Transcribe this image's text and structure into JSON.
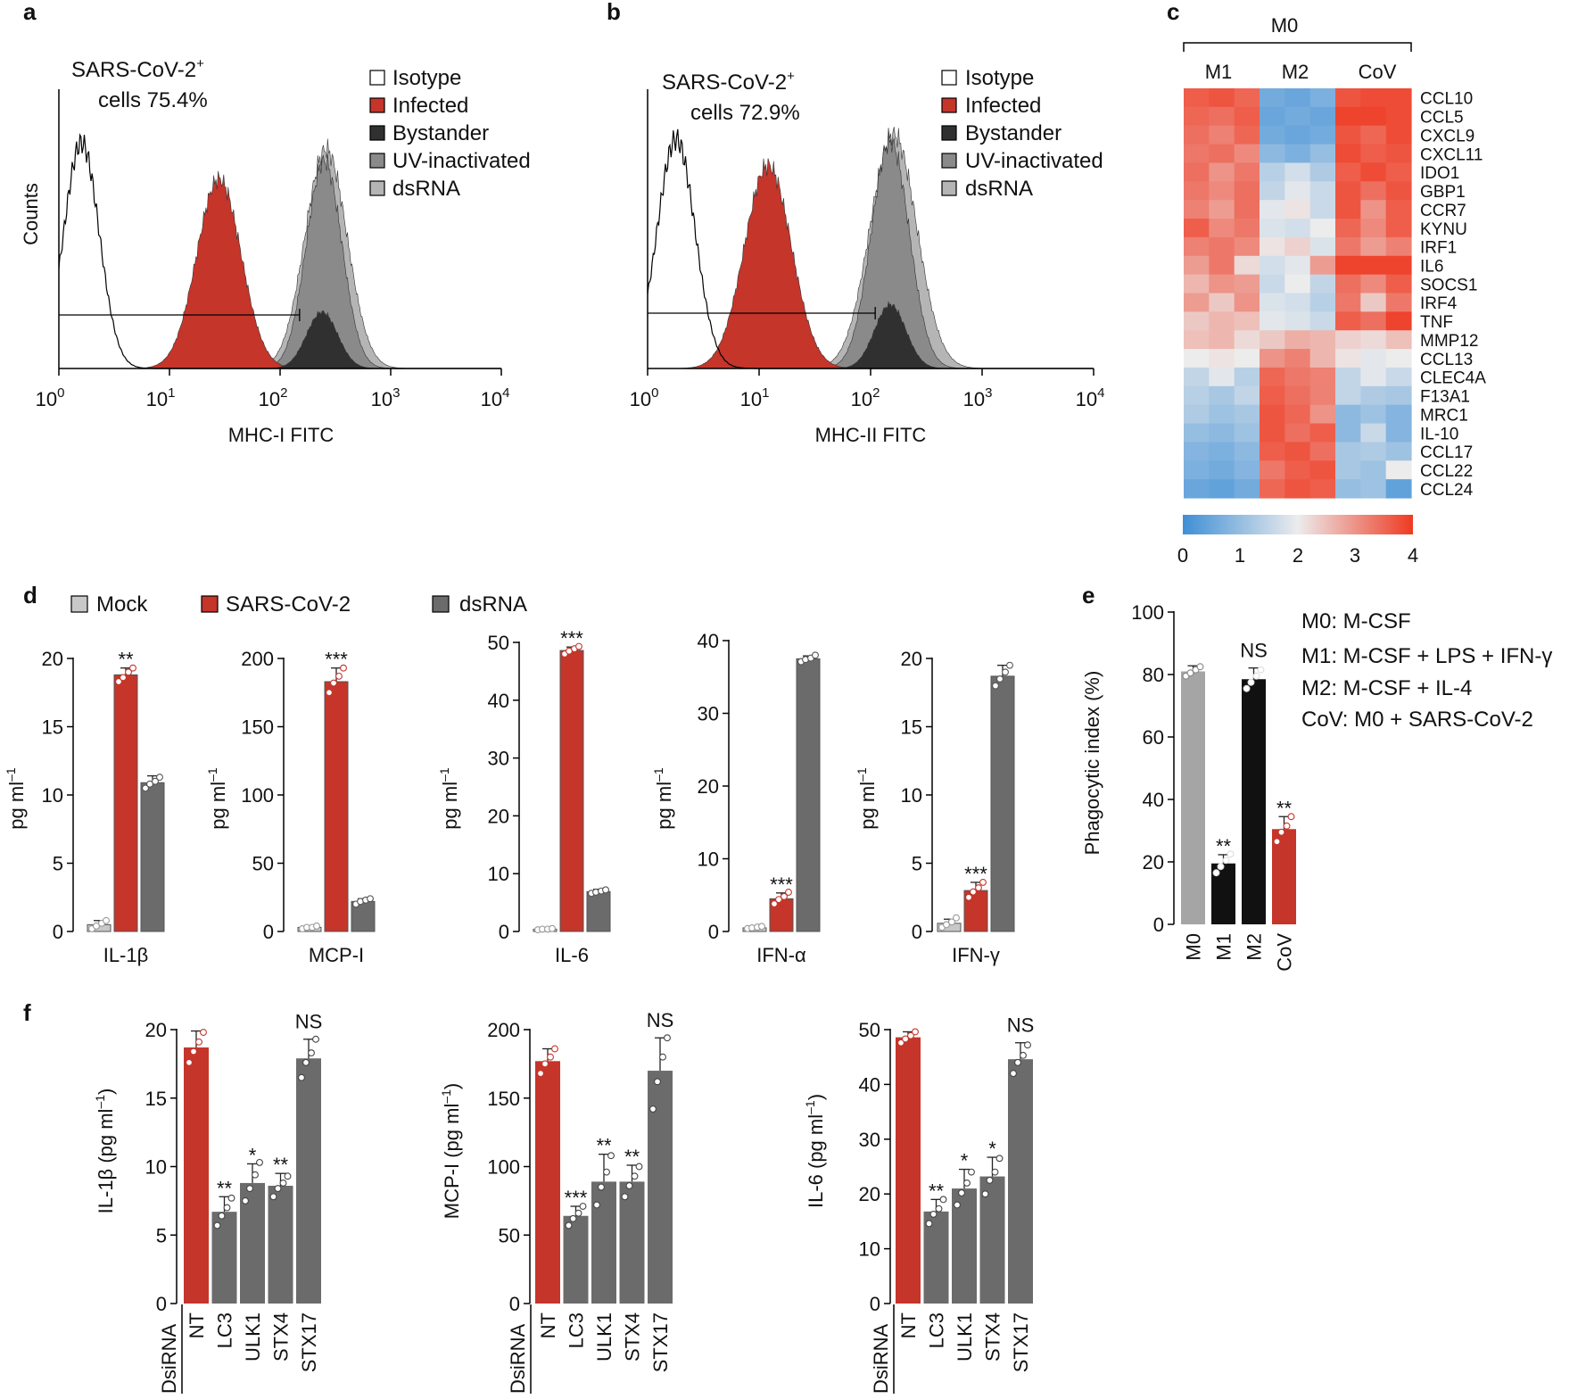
{
  "colors": {
    "red": "#c5352a",
    "dark": "#303030",
    "gray": "#6b6b6b",
    "mock": "#c8c8c8",
    "lightgray": "#a5a5a5",
    "black": "#111111",
    "heat_low": "#3f8fd6",
    "heat_mid": "#ececec",
    "heat_high": "#ee3a22"
  },
  "panels": {
    "a": {
      "label": "a",
      "annotation": [
        "SARS-CoV-2",
        "+",
        "cells 75.4%"
      ],
      "xlabel": "MHC-I FITC",
      "ylabel": "Counts",
      "legend": [
        {
          "label": "Isotype",
          "color": "#ffffff"
        },
        {
          "label": "Infected",
          "color": "#c5352a"
        },
        {
          "label": "Bystander",
          "color": "#303030"
        },
        {
          "label": "UV-inactivated",
          "color": "#8a8a8a"
        },
        {
          "label": "dsRNA",
          "color": "#b5b5b5"
        }
      ],
      "xticks": [
        {
          "base": "10",
          "exp": "0"
        },
        {
          "base": "10",
          "exp": "1"
        },
        {
          "base": "10",
          "exp": "2"
        },
        {
          "base": "10",
          "exp": "3"
        },
        {
          "base": "10",
          "exp": "4"
        }
      ]
    },
    "b": {
      "label": "b",
      "annotation": [
        "SARS-CoV-2",
        "+",
        "cells 72.9%"
      ],
      "xlabel": "MHC-II FITC",
      "legend": [
        {
          "label": "Isotype",
          "color": "#ffffff"
        },
        {
          "label": "Infected",
          "color": "#c5352a"
        },
        {
          "label": "Bystander",
          "color": "#303030"
        },
        {
          "label": "UV-inactivated",
          "color": "#8a8a8a"
        },
        {
          "label": "dsRNA",
          "color": "#b5b5b5"
        }
      ],
      "xticks": [
        {
          "base": "10",
          "exp": "0"
        },
        {
          "base": "10",
          "exp": "1"
        },
        {
          "base": "10",
          "exp": "2"
        },
        {
          "base": "10",
          "exp": "3"
        },
        {
          "base": "10",
          "exp": "4"
        }
      ]
    },
    "c": {
      "label": "c",
      "top_group": "M0",
      "groups": [
        "M1",
        "M2",
        "CoV"
      ],
      "genes": [
        "CCL10",
        "CCL5",
        "CXCL9",
        "CXCL11",
        "IDO1",
        "GBP1",
        "CCR7",
        "KYNU",
        "IRF1",
        "IL6",
        "SOCS1",
        "IRF4",
        "TNF",
        "MMP12",
        "CCL13",
        "CLEC4A",
        "F13A1",
        "MRC1",
        "IL-10",
        "CCL17",
        "CCL22",
        "CCL24"
      ],
      "scale_ticks": [
        "0",
        "1",
        "2",
        "3",
        "4"
      ]
    },
    "d": {
      "label": "d",
      "legend": [
        {
          "label": "Mock",
          "color": "#c8c8c8"
        },
        {
          "label": "SARS-CoV-2",
          "color": "#c5352a"
        },
        {
          "label": "dsRNA",
          "color": "#6b6b6b"
        }
      ],
      "ylabel_text": "pg ml",
      "ylabel_sup": "–1"
    },
    "e": {
      "label": "e",
      "ylabel": "Phagocytic index (%)",
      "notes": [
        "M0: M-CSF",
        "M1: M-CSF + LPS + IFN-γ",
        "M2: M-CSF + IL-4",
        "CoV: M0 + SARS-CoV-2"
      ]
    },
    "f": {
      "label": "f",
      "row_label": "DsiRNA",
      "categories": [
        "NT",
        "LC3",
        "ULK1",
        "STX4",
        "STX17"
      ]
    }
  },
  "chart_data": [
    {
      "panel": "a",
      "type": "histogram",
      "xlabel": "MHC-I FITC",
      "ylabel": "Counts",
      "xscale": "log",
      "xlim": [
        1,
        10000
      ],
      "gate_range": [
        1,
        150
      ],
      "gate_percent": 75.4,
      "series": [
        {
          "name": "Isotype",
          "peak": 1.6,
          "width": 0.16,
          "height": 1.0,
          "mode": "outline"
        },
        {
          "name": "Infected",
          "peak": 28,
          "width": 0.2,
          "height": 0.84,
          "mode": "fill",
          "color": "#c5352a"
        },
        {
          "name": "UV-inactivated",
          "peak": 250,
          "width": 0.16,
          "height": 0.92,
          "mode": "fill",
          "color": "#8a8a8a"
        },
        {
          "name": "dsRNA",
          "peak": 260,
          "width": 0.19,
          "height": 0.97,
          "mode": "fill",
          "color": "#b5b5b5"
        },
        {
          "name": "Bystander",
          "peak": 240,
          "width": 0.14,
          "height": 0.25,
          "mode": "fill",
          "color": "#303030"
        }
      ]
    },
    {
      "panel": "b",
      "type": "histogram",
      "xlabel": "MHC-II FITC",
      "xscale": "log",
      "xlim": [
        1,
        10000
      ],
      "gate_range": [
        1,
        110
      ],
      "gate_percent": 72.9,
      "series": [
        {
          "name": "Isotype",
          "peak": 1.8,
          "width": 0.17,
          "height": 0.97,
          "mode": "outline"
        },
        {
          "name": "Infected",
          "peak": 12,
          "width": 0.21,
          "height": 0.86,
          "mode": "fill",
          "color": "#c5352a"
        },
        {
          "name": "UV-inactivated",
          "peak": 150,
          "width": 0.17,
          "height": 0.96,
          "mode": "fill",
          "color": "#8a8a8a"
        },
        {
          "name": "dsRNA",
          "peak": 160,
          "width": 0.21,
          "height": 0.99,
          "mode": "fill",
          "color": "#b5b5b5"
        },
        {
          "name": "Bystander",
          "peak": 150,
          "width": 0.14,
          "height": 0.27,
          "mode": "fill",
          "color": "#303030"
        }
      ]
    },
    {
      "panel": "c",
      "type": "heatmap",
      "scale": [
        0,
        4
      ],
      "columns": [
        "M1",
        "M1",
        "M1",
        "M2",
        "M2",
        "M2",
        "CoV",
        "CoV",
        "CoV"
      ],
      "rows": [
        "CCL10",
        "CCL5",
        "CXCL9",
        "CXCL11",
        "IDO1",
        "GBP1",
        "CCR7",
        "KYNU",
        "IRF1",
        "IL6",
        "SOCS1",
        "IRF4",
        "TNF",
        "MMP12",
        "CCL13",
        "CLEC4A",
        "F13A1",
        "MRC1",
        "IL-10",
        "CCL17",
        "CCL22",
        "CCL24"
      ],
      "values": [
        [
          3.6,
          3.7,
          3.5,
          0.6,
          0.5,
          0.7,
          3.7,
          3.8,
          3.8
        ],
        [
          3.5,
          3.4,
          3.6,
          0.5,
          0.6,
          0.5,
          3.9,
          3.9,
          3.8
        ],
        [
          3.4,
          3.2,
          3.5,
          0.6,
          0.5,
          0.6,
          3.7,
          3.5,
          3.8
        ],
        [
          3.3,
          3.4,
          3.1,
          0.9,
          0.7,
          1.0,
          3.8,
          3.6,
          3.7
        ],
        [
          3.4,
          3.0,
          3.3,
          1.4,
          1.7,
          1.3,
          3.6,
          3.8,
          3.6
        ],
        [
          3.3,
          3.1,
          3.4,
          1.5,
          1.9,
          1.6,
          3.7,
          3.4,
          3.7
        ],
        [
          3.2,
          2.9,
          3.4,
          1.9,
          2.1,
          1.6,
          3.7,
          3.0,
          3.6
        ],
        [
          3.6,
          3.1,
          3.3,
          1.8,
          1.7,
          2.0,
          3.5,
          3.1,
          3.6
        ],
        [
          3.2,
          3.3,
          3.1,
          2.1,
          2.3,
          1.8,
          3.3,
          2.9,
          3.2
        ],
        [
          2.9,
          3.3,
          2.2,
          1.7,
          1.9,
          2.9,
          3.9,
          3.9,
          3.9
        ],
        [
          2.6,
          3.0,
          2.9,
          1.6,
          2.0,
          1.5,
          3.4,
          3.1,
          3.6
        ],
        [
          2.9,
          2.4,
          3.0,
          1.8,
          1.7,
          1.4,
          3.3,
          2.4,
          3.3
        ],
        [
          2.4,
          2.6,
          2.5,
          1.9,
          1.8,
          1.6,
          3.6,
          3.4,
          3.9
        ],
        [
          2.5,
          2.6,
          2.2,
          2.4,
          2.7,
          2.6,
          2.3,
          2.2,
          2.5
        ],
        [
          2.0,
          2.1,
          2.0,
          3.0,
          3.2,
          2.6,
          2.1,
          1.9,
          2.0
        ],
        [
          1.5,
          1.9,
          1.4,
          3.5,
          3.3,
          3.2,
          1.5,
          1.9,
          1.6
        ],
        [
          1.4,
          1.2,
          1.5,
          3.6,
          3.4,
          3.2,
          1.5,
          1.3,
          1.2
        ],
        [
          1.3,
          1.1,
          1.2,
          3.7,
          3.5,
          3.0,
          0.9,
          1.1,
          0.8
        ],
        [
          1.0,
          0.9,
          1.1,
          3.7,
          3.4,
          3.6,
          0.9,
          1.6,
          0.8
        ],
        [
          0.8,
          0.7,
          0.9,
          3.6,
          3.7,
          3.4,
          1.2,
          1.3,
          1.1
        ],
        [
          0.7,
          0.6,
          0.8,
          3.3,
          3.6,
          3.7,
          1.2,
          1.1,
          2.0
        ],
        [
          0.5,
          0.4,
          0.6,
          3.5,
          3.7,
          3.6,
          1.0,
          1.1,
          0.4
        ]
      ]
    },
    {
      "panel": "d1",
      "type": "bar",
      "xlabel": "IL-1β",
      "ylabel": "pg ml–1",
      "ylim": [
        0,
        20
      ],
      "yticks": [
        0,
        5,
        10,
        15,
        20
      ],
      "categories": [
        "Mock",
        "SARS-CoV-2",
        "dsRNA"
      ],
      "values": [
        0.5,
        18.8,
        10.9
      ],
      "errors": [
        0.3,
        0.5,
        0.5
      ],
      "points": [
        [
          0.2,
          0.4,
          0.6,
          0.8
        ],
        [
          18.3,
          18.6,
          19.0,
          19.3
        ],
        [
          10.5,
          10.8,
          11.0,
          11.3
        ]
      ],
      "signif": [
        "",
        "**",
        ""
      ]
    },
    {
      "panel": "d2",
      "type": "bar",
      "xlabel": "MCP-I",
      "ylabel": "pg ml–1",
      "ylim": [
        0,
        200
      ],
      "yticks": [
        0,
        50,
        100,
        150,
        200
      ],
      "categories": [
        "Mock",
        "SARS-CoV-2",
        "dsRNA"
      ],
      "values": [
        3,
        183,
        22
      ],
      "errors": [
        1,
        10,
        2
      ],
      "points": [
        [
          2,
          3,
          3,
          4
        ],
        [
          175,
          182,
          187,
          193
        ],
        [
          20,
          22,
          23,
          24
        ]
      ],
      "signif": [
        "",
        "***",
        ""
      ]
    },
    {
      "panel": "d3",
      "type": "bar",
      "xlabel": "IL-6",
      "ylabel": "pg ml–1",
      "ylim": [
        0,
        50
      ],
      "yticks": [
        0,
        10,
        20,
        30,
        40,
        50
      ],
      "categories": [
        "Mock",
        "SARS-CoV-2",
        "dsRNA"
      ],
      "values": [
        0.4,
        48.6,
        6.9
      ],
      "errors": [
        0.2,
        0.6,
        0.4
      ],
      "points": [
        [
          0.3,
          0.4,
          0.4,
          0.5
        ],
        [
          48.0,
          48.5,
          48.9,
          49.3
        ],
        [
          6.6,
          6.8,
          7.0,
          7.2
        ]
      ],
      "signif": [
        "",
        "***",
        ""
      ]
    },
    {
      "panel": "d4",
      "type": "bar",
      "xlabel": "IFN-α",
      "ylabel": "pg ml–1",
      "ylim": [
        0,
        40
      ],
      "yticks": [
        0,
        10,
        20,
        30,
        40
      ],
      "categories": [
        "Mock",
        "SARS-CoV-2",
        "dsRNA"
      ],
      "values": [
        0.5,
        4.5,
        37.5
      ],
      "errors": [
        0.2,
        0.8,
        0.4
      ],
      "points": [
        [
          0.4,
          0.5,
          0.6,
          0.7
        ],
        [
          3.8,
          4.4,
          4.8,
          5.4
        ],
        [
          37.1,
          37.4,
          37.6,
          38.0
        ]
      ],
      "signif": [
        "",
        "***",
        ""
      ]
    },
    {
      "panel": "d5",
      "type": "bar",
      "xlabel": "IFN-γ",
      "ylabel": "pg ml–1",
      "ylim": [
        0,
        20
      ],
      "yticks": [
        0,
        5,
        10,
        15,
        20
      ],
      "categories": [
        "Mock",
        "SARS-CoV-2",
        "dsRNA"
      ],
      "values": [
        0.6,
        3.0,
        18.7
      ],
      "errors": [
        0.3,
        0.6,
        0.8
      ],
      "points": [
        [
          0.3,
          0.5,
          0.7,
          1.0
        ],
        [
          2.5,
          2.9,
          3.2,
          3.6
        ],
        [
          18.0,
          18.5,
          19.0,
          19.5
        ]
      ],
      "signif": [
        "",
        "***",
        ""
      ]
    },
    {
      "panel": "e",
      "type": "bar",
      "ylabel": "Phagocytic index (%)",
      "ylim": [
        0,
        100
      ],
      "yticks": [
        0,
        20,
        40,
        60,
        80,
        100
      ],
      "categories": [
        "M0",
        "M1",
        "M2",
        "CoV"
      ],
      "values": [
        81,
        19.5,
        78.5,
        30.5
      ],
      "errors": [
        1.8,
        2.8,
        3.6,
        4
      ],
      "points": [
        [
          79.5,
          80.5,
          81.5,
          82.5
        ],
        [
          16.5,
          18.5,
          20.5,
          22.5
        ],
        [
          75.5,
          77.5,
          79.5,
          81.5
        ],
        [
          26.5,
          29.5,
          31.5,
          34.5
        ]
      ],
      "signif": [
        "",
        "**",
        "NS",
        "**"
      ]
    },
    {
      "panel": "f1",
      "type": "bar",
      "ylabel": "IL-1β (pg ml–1)",
      "ylim": [
        0,
        20
      ],
      "yticks": [
        0,
        5,
        10,
        15,
        20
      ],
      "categories": [
        "NT",
        "LC3",
        "ULK1",
        "STX4",
        "STX17"
      ],
      "values": [
        18.7,
        6.7,
        8.8,
        8.6,
        17.9
      ],
      "errors": [
        1.2,
        1.1,
        1.4,
        0.9,
        1.4
      ],
      "points": [
        [
          17.6,
          18.4,
          19.1,
          19.8
        ],
        [
          5.7,
          6.4,
          7.0,
          7.7
        ],
        [
          7.5,
          8.4,
          9.4,
          10.3
        ],
        [
          7.8,
          8.4,
          8.8,
          9.3
        ],
        [
          16.5,
          17.6,
          18.3,
          19.3
        ]
      ],
      "signif": [
        "",
        "**",
        "*",
        "**",
        "NS"
      ]
    },
    {
      "panel": "f2",
      "type": "bar",
      "ylabel": "MCP-I (pg ml–1)",
      "ylim": [
        0,
        200
      ],
      "yticks": [
        0,
        50,
        100,
        150,
        200
      ],
      "categories": [
        "NT",
        "LC3",
        "ULK1",
        "STX4",
        "STX17"
      ],
      "values": [
        177,
        64,
        89,
        89,
        170
      ],
      "errors": [
        9,
        7,
        20,
        12,
        24
      ],
      "points": [
        [
          168,
          175,
          180,
          186
        ],
        [
          57,
          62,
          66,
          71
        ],
        [
          72,
          85,
          96,
          108
        ],
        [
          78,
          86,
          93,
          100
        ],
        [
          142,
          162,
          180,
          194
        ]
      ],
      "signif": [
        "",
        "***",
        "**",
        "**",
        "NS"
      ]
    },
    {
      "panel": "f3",
      "type": "bar",
      "ylabel": "IL-6 (pg ml–1)",
      "ylim": [
        0,
        50
      ],
      "yticks": [
        0,
        10,
        20,
        30,
        40,
        50
      ],
      "categories": [
        "NT",
        "LC3",
        "ULK1",
        "STX4",
        "STX17"
      ],
      "values": [
        48.6,
        16.8,
        21,
        23.2,
        44.6
      ],
      "errors": [
        1,
        2.2,
        3.5,
        3.5,
        3
      ],
      "points": [
        [
          47.6,
          48.3,
          48.9,
          49.6
        ],
        [
          14.6,
          16.3,
          17.3,
          19.0
        ],
        [
          18.0,
          20.2,
          22.0,
          24.0
        ],
        [
          20.0,
          22.5,
          24.0,
          26.5
        ],
        [
          42.0,
          44.0,
          45.3,
          47.2
        ]
      ],
      "signif": [
        "",
        "**",
        "*",
        "*",
        "NS"
      ]
    }
  ]
}
